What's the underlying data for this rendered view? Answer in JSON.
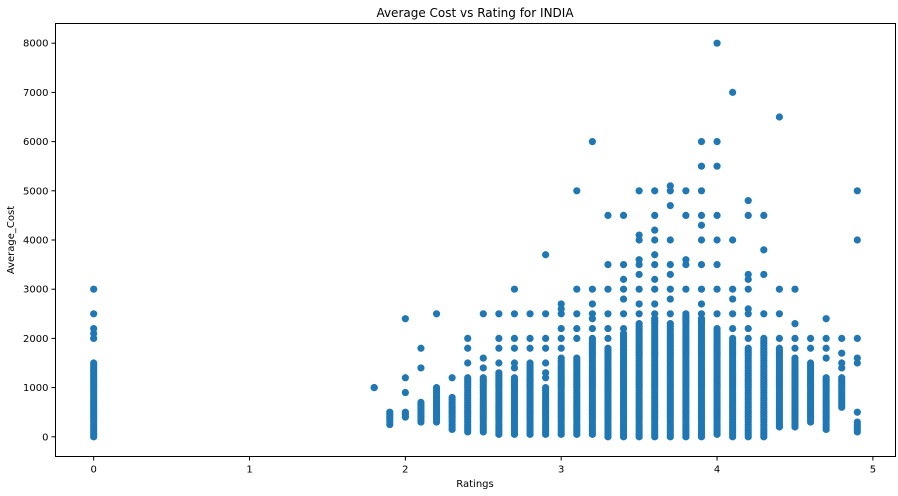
{
  "chart_data": {
    "type": "scatter",
    "title": "Average Cost vs Rating for INDIA",
    "xlabel": "Ratings",
    "ylabel": "Average_Cost",
    "xlim": [
      -0.245,
      5.145
    ],
    "ylim": [
      -400,
      8400
    ],
    "x_ticks": [
      0,
      1,
      2,
      3,
      4,
      5
    ],
    "x_tick_labels": [
      "0",
      "1",
      "2",
      "3",
      "4",
      "5"
    ],
    "y_ticks": [
      0,
      1000,
      2000,
      3000,
      4000,
      5000,
      6000,
      7000,
      8000
    ],
    "y_tick_labels": [
      "0",
      "1000",
      "2000",
      "3000",
      "4000",
      "5000",
      "6000",
      "7000",
      "8000"
    ],
    "grid": false,
    "marker_color": "#1f77b4",
    "columns": [
      {
        "x": 0.0,
        "ymin": 0,
        "ymax": 1500,
        "extra": [
          2000,
          2100,
          2200,
          2500,
          3000
        ]
      },
      {
        "x": 1.8,
        "ymin": 1000,
        "ymax": 1000,
        "extra": []
      },
      {
        "x": 1.9,
        "ymin": 250,
        "ymax": 500,
        "extra": []
      },
      {
        "x": 2.0,
        "ymin": 400,
        "ymax": 500,
        "extra": [
          900,
          1200,
          2400
        ]
      },
      {
        "x": 2.1,
        "ymin": 300,
        "ymax": 700,
        "extra": [
          1400,
          1800
        ]
      },
      {
        "x": 2.2,
        "ymin": 300,
        "ymax": 1000,
        "extra": [
          2500
        ]
      },
      {
        "x": 2.3,
        "ymin": 150,
        "ymax": 800,
        "extra": [
          1200
        ]
      },
      {
        "x": 2.4,
        "ymin": 100,
        "ymax": 1200,
        "extra": [
          1500,
          1800,
          2000
        ]
      },
      {
        "x": 2.5,
        "ymin": 100,
        "ymax": 1200,
        "extra": [
          1400,
          1600,
          2500
        ]
      },
      {
        "x": 2.6,
        "ymin": 50,
        "ymax": 1300,
        "extra": [
          1500,
          1800,
          2000,
          2500
        ]
      },
      {
        "x": 2.7,
        "ymin": 50,
        "ymax": 1200,
        "extra": [
          1400,
          1500,
          1800,
          2000,
          2500,
          3000
        ]
      },
      {
        "x": 2.8,
        "ymin": 50,
        "ymax": 1500,
        "extra": [
          1800,
          2000,
          2500
        ]
      },
      {
        "x": 2.9,
        "ymin": 50,
        "ymax": 1000,
        "extra": [
          1200,
          1300,
          1500,
          1800,
          2000,
          2500,
          3700
        ]
      },
      {
        "x": 3.0,
        "ymin": 50,
        "ymax": 1600,
        "extra": [
          1800,
          2000,
          2200,
          2500,
          2600,
          2700
        ]
      },
      {
        "x": 3.1,
        "ymin": 50,
        "ymax": 1600,
        "extra": [
          2000,
          2200,
          2500,
          3000,
          5000
        ]
      },
      {
        "x": 3.2,
        "ymin": 50,
        "ymax": 2000,
        "extra": [
          2200,
          2400,
          2500,
          2700,
          3000,
          6000
        ]
      },
      {
        "x": 3.3,
        "ymin": 0,
        "ymax": 1800,
        "extra": [
          2000,
          2200,
          2500,
          3000,
          3500,
          4500
        ]
      },
      {
        "x": 3.4,
        "ymin": 0,
        "ymax": 2100,
        "extra": [
          2200,
          2500,
          2800,
          3000,
          3200,
          3500,
          4500
        ]
      },
      {
        "x": 3.5,
        "ymin": 0,
        "ymax": 2300,
        "extra": [
          2500,
          2700,
          3000,
          3300,
          3500,
          3600,
          4000,
          4100,
          5000
        ]
      },
      {
        "x": 3.6,
        "ymin": 0,
        "ymax": 2400,
        "extra": [
          2500,
          2700,
          3000,
          3200,
          3500,
          3700,
          4000,
          4200,
          4500,
          5000
        ]
      },
      {
        "x": 3.7,
        "ymin": 0,
        "ymax": 2300,
        "extra": [
          2500,
          2800,
          3000,
          3300,
          3500,
          4000,
          4700,
          5000,
          5100
        ]
      },
      {
        "x": 3.8,
        "ymin": 0,
        "ymax": 2500,
        "extra": [
          3000,
          3500,
          3600,
          4500,
          5000
        ]
      },
      {
        "x": 3.9,
        "ymin": 0,
        "ymax": 2400,
        "extra": [
          2500,
          2700,
          3000,
          3500,
          4000,
          4300,
          4500,
          5000,
          5500,
          6000
        ]
      },
      {
        "x": 4.0,
        "ymin": 50,
        "ymax": 2200,
        "extra": [
          2500,
          3000,
          3500,
          4000,
          4500,
          5500,
          6000,
          8000
        ]
      },
      {
        "x": 4.1,
        "ymin": 0,
        "ymax": 2000,
        "extra": [
          2200,
          2500,
          2800,
          3000,
          4000,
          7000
        ]
      },
      {
        "x": 4.2,
        "ymin": 0,
        "ymax": 1800,
        "extra": [
          2000,
          2200,
          2500,
          2600,
          3000,
          3200,
          3300,
          4500,
          4800
        ]
      },
      {
        "x": 4.3,
        "ymin": 0,
        "ymax": 2000,
        "extra": [
          2500,
          3300,
          3800,
          4500
        ]
      },
      {
        "x": 4.4,
        "ymin": 200,
        "ymax": 1800,
        "extra": [
          2000,
          2500,
          3000,
          6500
        ]
      },
      {
        "x": 4.5,
        "ymin": 200,
        "ymax": 1600,
        "extra": [
          1800,
          2000,
          2300,
          3000
        ]
      },
      {
        "x": 4.6,
        "ymin": 300,
        "ymax": 1500,
        "extra": [
          1800,
          2000
        ]
      },
      {
        "x": 4.7,
        "ymin": 150,
        "ymax": 1200,
        "extra": [
          1600,
          1800,
          2000,
          2400
        ]
      },
      {
        "x": 4.8,
        "ymin": 600,
        "ymax": 1200,
        "extra": [
          1400,
          1500,
          1700,
          2000
        ]
      },
      {
        "x": 4.9,
        "ymin": 100,
        "ymax": 300,
        "extra": [
          500,
          1500,
          1600,
          2000,
          4000,
          5000
        ]
      }
    ]
  }
}
